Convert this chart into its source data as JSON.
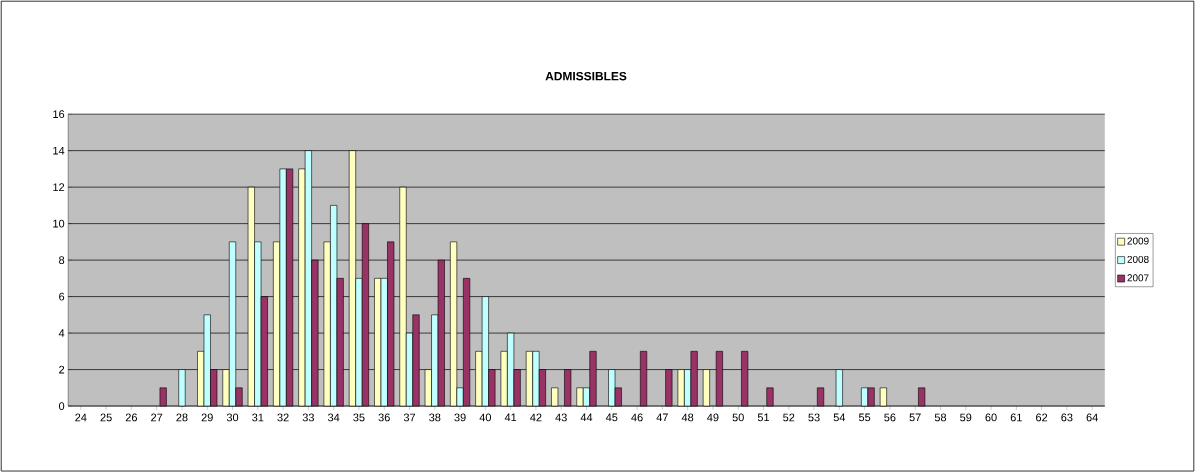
{
  "chart_data": {
    "type": "bar",
    "title": "ADMISSIBLES",
    "categories": [
      "24",
      "25",
      "26",
      "27",
      "28",
      "29",
      "30",
      "31",
      "32",
      "33",
      "34",
      "35",
      "36",
      "37",
      "38",
      "39",
      "40",
      "41",
      "42",
      "43",
      "44",
      "45",
      "46",
      "47",
      "48",
      "49",
      "50",
      "51",
      "52",
      "53",
      "54",
      "55",
      "56",
      "57",
      "58",
      "59",
      "60",
      "61",
      "62",
      "63",
      "64"
    ],
    "series": [
      {
        "name": "2009",
        "color": "#ffffc0",
        "values": [
          null,
          null,
          null,
          null,
          null,
          3,
          2,
          12,
          9,
          13,
          9,
          14,
          7,
          12,
          2,
          9,
          3,
          3,
          3,
          1,
          1,
          null,
          null,
          null,
          2,
          2,
          null,
          null,
          null,
          null,
          null,
          null,
          1,
          null,
          null,
          null,
          null,
          null,
          null,
          null,
          null
        ]
      },
      {
        "name": "2008",
        "color": "#c0ffff",
        "values": [
          null,
          null,
          null,
          null,
          2,
          5,
          9,
          9,
          13,
          14,
          11,
          7,
          7,
          4,
          5,
          1,
          6,
          4,
          3,
          null,
          1,
          2,
          null,
          null,
          2,
          null,
          null,
          null,
          null,
          null,
          2,
          1,
          null,
          null,
          null,
          null,
          null,
          null,
          null,
          null,
          null
        ]
      },
      {
        "name": "2007",
        "color": "#993366",
        "values": [
          null,
          null,
          null,
          1,
          null,
          2,
          1,
          6,
          13,
          8,
          7,
          10,
          9,
          5,
          8,
          7,
          2,
          2,
          2,
          2,
          3,
          1,
          3,
          2,
          3,
          3,
          3,
          1,
          null,
          1,
          null,
          1,
          null,
          1,
          null,
          null,
          null,
          null,
          null,
          null,
          null
        ]
      }
    ],
    "ylim": [
      0,
      16
    ],
    "yticks": [
      0,
      2,
      4,
      6,
      8,
      10,
      12,
      14,
      16
    ],
    "grid": "y",
    "legend": "right"
  }
}
